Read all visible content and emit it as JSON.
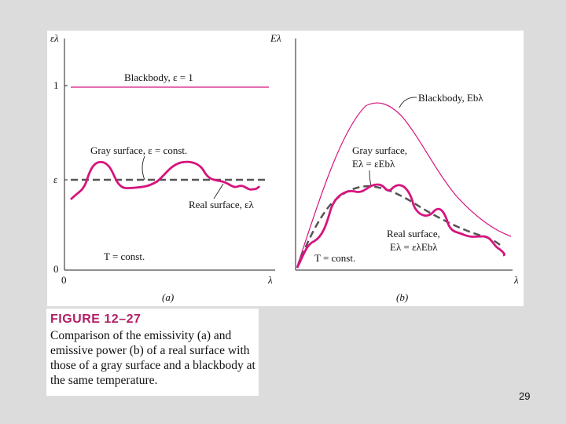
{
  "figure": {
    "panel_a": {
      "y_axis_label": "ελ",
      "tick_one": "1",
      "tick_epsilon": "ε",
      "tick_zero": "0",
      "origin_label": "0",
      "x_axis_label": "λ",
      "blackbody_label": "Blackbody, ε = 1",
      "gray_label": "Gray surface, ε = const.",
      "real_label": "Real surface, ελ",
      "temp_label": "T = const.",
      "panel_label": "(a)"
    },
    "panel_b": {
      "y_axis_label": "Eλ",
      "x_axis_label": "λ",
      "blackbody_label": "Blackbody, Ebλ",
      "gray_label_1": "Gray surface,",
      "gray_label_2": "Eλ = εEbλ",
      "real_label_1": "Real surface,",
      "real_label_2": "Eλ = ελEbλ",
      "temp_label": "T = const.",
      "panel_label": "(b)"
    },
    "colors": {
      "curve": "#d6147e",
      "gray_dash": "#555555"
    }
  },
  "caption": {
    "heading": "FIGURE 12–27",
    "text": "Comparison of the emissivity (a) and emissive power (b) of a real surface with those of a gray surface and a blackbody at the same temperature."
  },
  "page_number": "29"
}
